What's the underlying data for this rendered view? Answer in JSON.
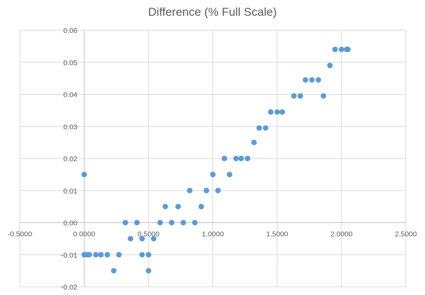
{
  "chart_data": {
    "type": "scatter",
    "title": "Difference (% Full Scale)",
    "xlabel": "",
    "ylabel": "",
    "xlim": [
      -0.5,
      2.5
    ],
    "ylim": [
      -0.02,
      0.06
    ],
    "xticks": [
      -0.5,
      0.0,
      0.5,
      1.0,
      1.5,
      2.0,
      2.5
    ],
    "yticks": [
      -0.02,
      -0.01,
      0.0,
      0.01,
      0.02,
      0.03,
      0.04,
      0.05,
      0.06
    ],
    "xtick_labels": [
      "-0.5000",
      "0.0000",
      "0.5000",
      "1.0000",
      "1.5000",
      "2.0000",
      "2.5000"
    ],
    "ytick_labels": [
      "-0.02",
      "-0.01",
      "0.00",
      "0.01",
      "0.02",
      "0.03",
      "0.04",
      "0.05",
      "0.06"
    ],
    "grid": true,
    "legend": "none",
    "series_color": "#5b9bd5",
    "series": [
      {
        "name": "Difference",
        "points": [
          [
            0.0,
            0.015
          ],
          [
            0.0,
            -0.01
          ],
          [
            0.02,
            -0.01
          ],
          [
            0.04,
            -0.01
          ],
          [
            0.09,
            -0.01
          ],
          [
            0.13,
            -0.01
          ],
          [
            0.18,
            -0.01
          ],
          [
            0.23,
            -0.015
          ],
          [
            0.27,
            -0.01
          ],
          [
            0.32,
            0.0
          ],
          [
            0.36,
            -0.005
          ],
          [
            0.41,
            0.0
          ],
          [
            0.45,
            -0.005
          ],
          [
            0.45,
            -0.01
          ],
          [
            0.5,
            -0.01
          ],
          [
            0.5,
            -0.015
          ],
          [
            0.54,
            -0.005
          ],
          [
            0.59,
            0.0
          ],
          [
            0.63,
            0.005
          ],
          [
            0.68,
            0.0
          ],
          [
            0.73,
            0.005
          ],
          [
            0.77,
            0.0
          ],
          [
            0.82,
            0.01
          ],
          [
            0.86,
            0.0
          ],
          [
            0.91,
            0.005
          ],
          [
            0.95,
            0.01
          ],
          [
            1.0,
            0.015
          ],
          [
            1.04,
            0.01
          ],
          [
            1.09,
            0.02
          ],
          [
            1.13,
            0.015
          ],
          [
            1.18,
            0.02
          ],
          [
            1.22,
            0.02
          ],
          [
            1.27,
            0.02
          ],
          [
            1.32,
            0.025
          ],
          [
            1.36,
            0.0295
          ],
          [
            1.41,
            0.0295
          ],
          [
            1.45,
            0.0345
          ],
          [
            1.5,
            0.0345
          ],
          [
            1.54,
            0.0345
          ],
          [
            1.63,
            0.0395
          ],
          [
            1.68,
            0.0395
          ],
          [
            1.72,
            0.0445
          ],
          [
            1.77,
            0.0445
          ],
          [
            1.82,
            0.0445
          ],
          [
            1.86,
            0.0395
          ],
          [
            1.91,
            0.049
          ],
          [
            1.95,
            0.054
          ],
          [
            2.0,
            0.054
          ],
          [
            2.04,
            0.054
          ],
          [
            2.05,
            0.054
          ]
        ]
      }
    ]
  }
}
